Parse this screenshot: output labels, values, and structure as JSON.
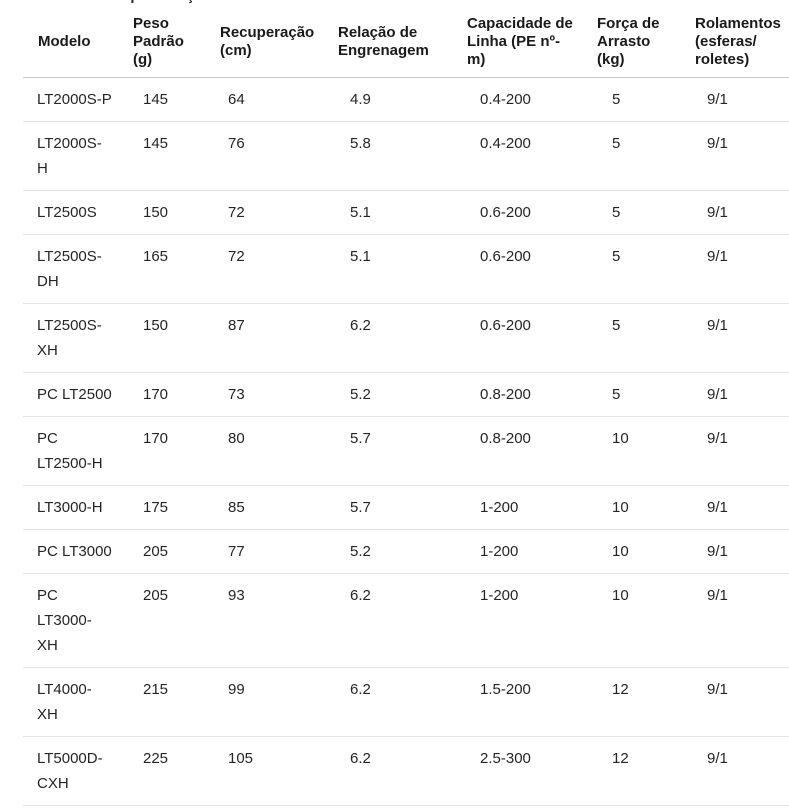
{
  "page": {
    "cropped_heading_fragment": "Especificações"
  },
  "table": {
    "columns": [
      {
        "key": "model",
        "label": "Modelo"
      },
      {
        "key": "weight",
        "label": "Peso\nPadrão\n(g)"
      },
      {
        "key": "retrieve",
        "label": "Recuperação\n(cm)"
      },
      {
        "key": "gear-ratio",
        "label": "Relação de\nEngrenagem"
      },
      {
        "key": "line-capacity",
        "label": "Capacidade de\nLinha (PE nº-\nm)"
      },
      {
        "key": "drag",
        "label": "Força de\nArrasto\n(kg)"
      },
      {
        "key": "bearings",
        "label": "Rolamentos\n(esferas/\nroletes)"
      }
    ],
    "rows": [
      [
        "LT2000S-P",
        "145",
        "64",
        "4.9",
        "0.4-200",
        "5",
        "9/1"
      ],
      [
        "LT2000S-\nH",
        "145",
        "76",
        "5.8",
        "0.4-200",
        "5",
        "9/1"
      ],
      [
        "LT2500S",
        "150",
        "72",
        "5.1",
        "0.6-200",
        "5",
        "9/1"
      ],
      [
        "LT2500S-\nDH",
        "165",
        "72",
        "5.1",
        "0.6-200",
        "5",
        "9/1"
      ],
      [
        "LT2500S-\nXH",
        "150",
        "87",
        "6.2",
        "0.6-200",
        "5",
        "9/1"
      ],
      [
        "PC LT2500",
        "170",
        "73",
        "5.2",
        "0.8-200",
        "5",
        "9/1"
      ],
      [
        "PC\nLT2500-H",
        "170",
        "80",
        "5.7",
        "0.8-200",
        "10",
        "9/1"
      ],
      [
        "LT3000-H",
        "175",
        "85",
        "5.7",
        "1-200",
        "10",
        "9/1"
      ],
      [
        "PC LT3000",
        "205",
        "77",
        "5.2",
        "1-200",
        "10",
        "9/1"
      ],
      [
        "PC\nLT3000-\nXH",
        "205",
        "93",
        "6.2",
        "1-200",
        "10",
        "9/1"
      ],
      [
        "LT4000-\nXH",
        "215",
        "99",
        "6.2",
        "1.5-200",
        "12",
        "9/1"
      ],
      [
        "LT5000D-\nCXH",
        "225",
        "105",
        "6.2",
        "2.5-300",
        "12",
        "9/1"
      ]
    ]
  },
  "chart_data": {
    "type": "table",
    "title": "",
    "columns": [
      "Modelo",
      "Peso Padrão (g)",
      "Recuperação (cm)",
      "Relação de Engrenagem",
      "Capacidade de Linha (PE nº-m)",
      "Força de Arrasto (kg)",
      "Rolamentos (esferas/roletes)"
    ],
    "rows": [
      [
        "LT2000S-P",
        145,
        64,
        4.9,
        "0.4-200",
        5,
        "9/1"
      ],
      [
        "LT2000S-H",
        145,
        76,
        5.8,
        "0.4-200",
        5,
        "9/1"
      ],
      [
        "LT2500S",
        150,
        72,
        5.1,
        "0.6-200",
        5,
        "9/1"
      ],
      [
        "LT2500S-DH",
        165,
        72,
        5.1,
        "0.6-200",
        5,
        "9/1"
      ],
      [
        "LT2500S-XH",
        150,
        87,
        6.2,
        "0.6-200",
        5,
        "9/1"
      ],
      [
        "PC LT2500",
        170,
        73,
        5.2,
        "0.8-200",
        5,
        "9/1"
      ],
      [
        "PC LT2500-H",
        170,
        80,
        5.7,
        "0.8-200",
        10,
        "9/1"
      ],
      [
        "LT3000-H",
        175,
        85,
        5.7,
        "1-200",
        10,
        "9/1"
      ],
      [
        "PC LT3000",
        205,
        77,
        5.2,
        "1-200",
        10,
        "9/1"
      ],
      [
        "PC LT3000-XH",
        205,
        93,
        6.2,
        "1-200",
        10,
        "9/1"
      ],
      [
        "LT4000-XH",
        215,
        99,
        6.2,
        "1.5-200",
        12,
        "9/1"
      ],
      [
        "LT5000D-CXH",
        225,
        105,
        6.2,
        "2.5-300",
        12,
        "9/1"
      ]
    ]
  },
  "colors": {
    "background": "#ffffff",
    "text": "#252525",
    "header_text": "#1a1a1a",
    "header_rule": "#c9c9c9",
    "row_rule": "#e5e5e5"
  }
}
